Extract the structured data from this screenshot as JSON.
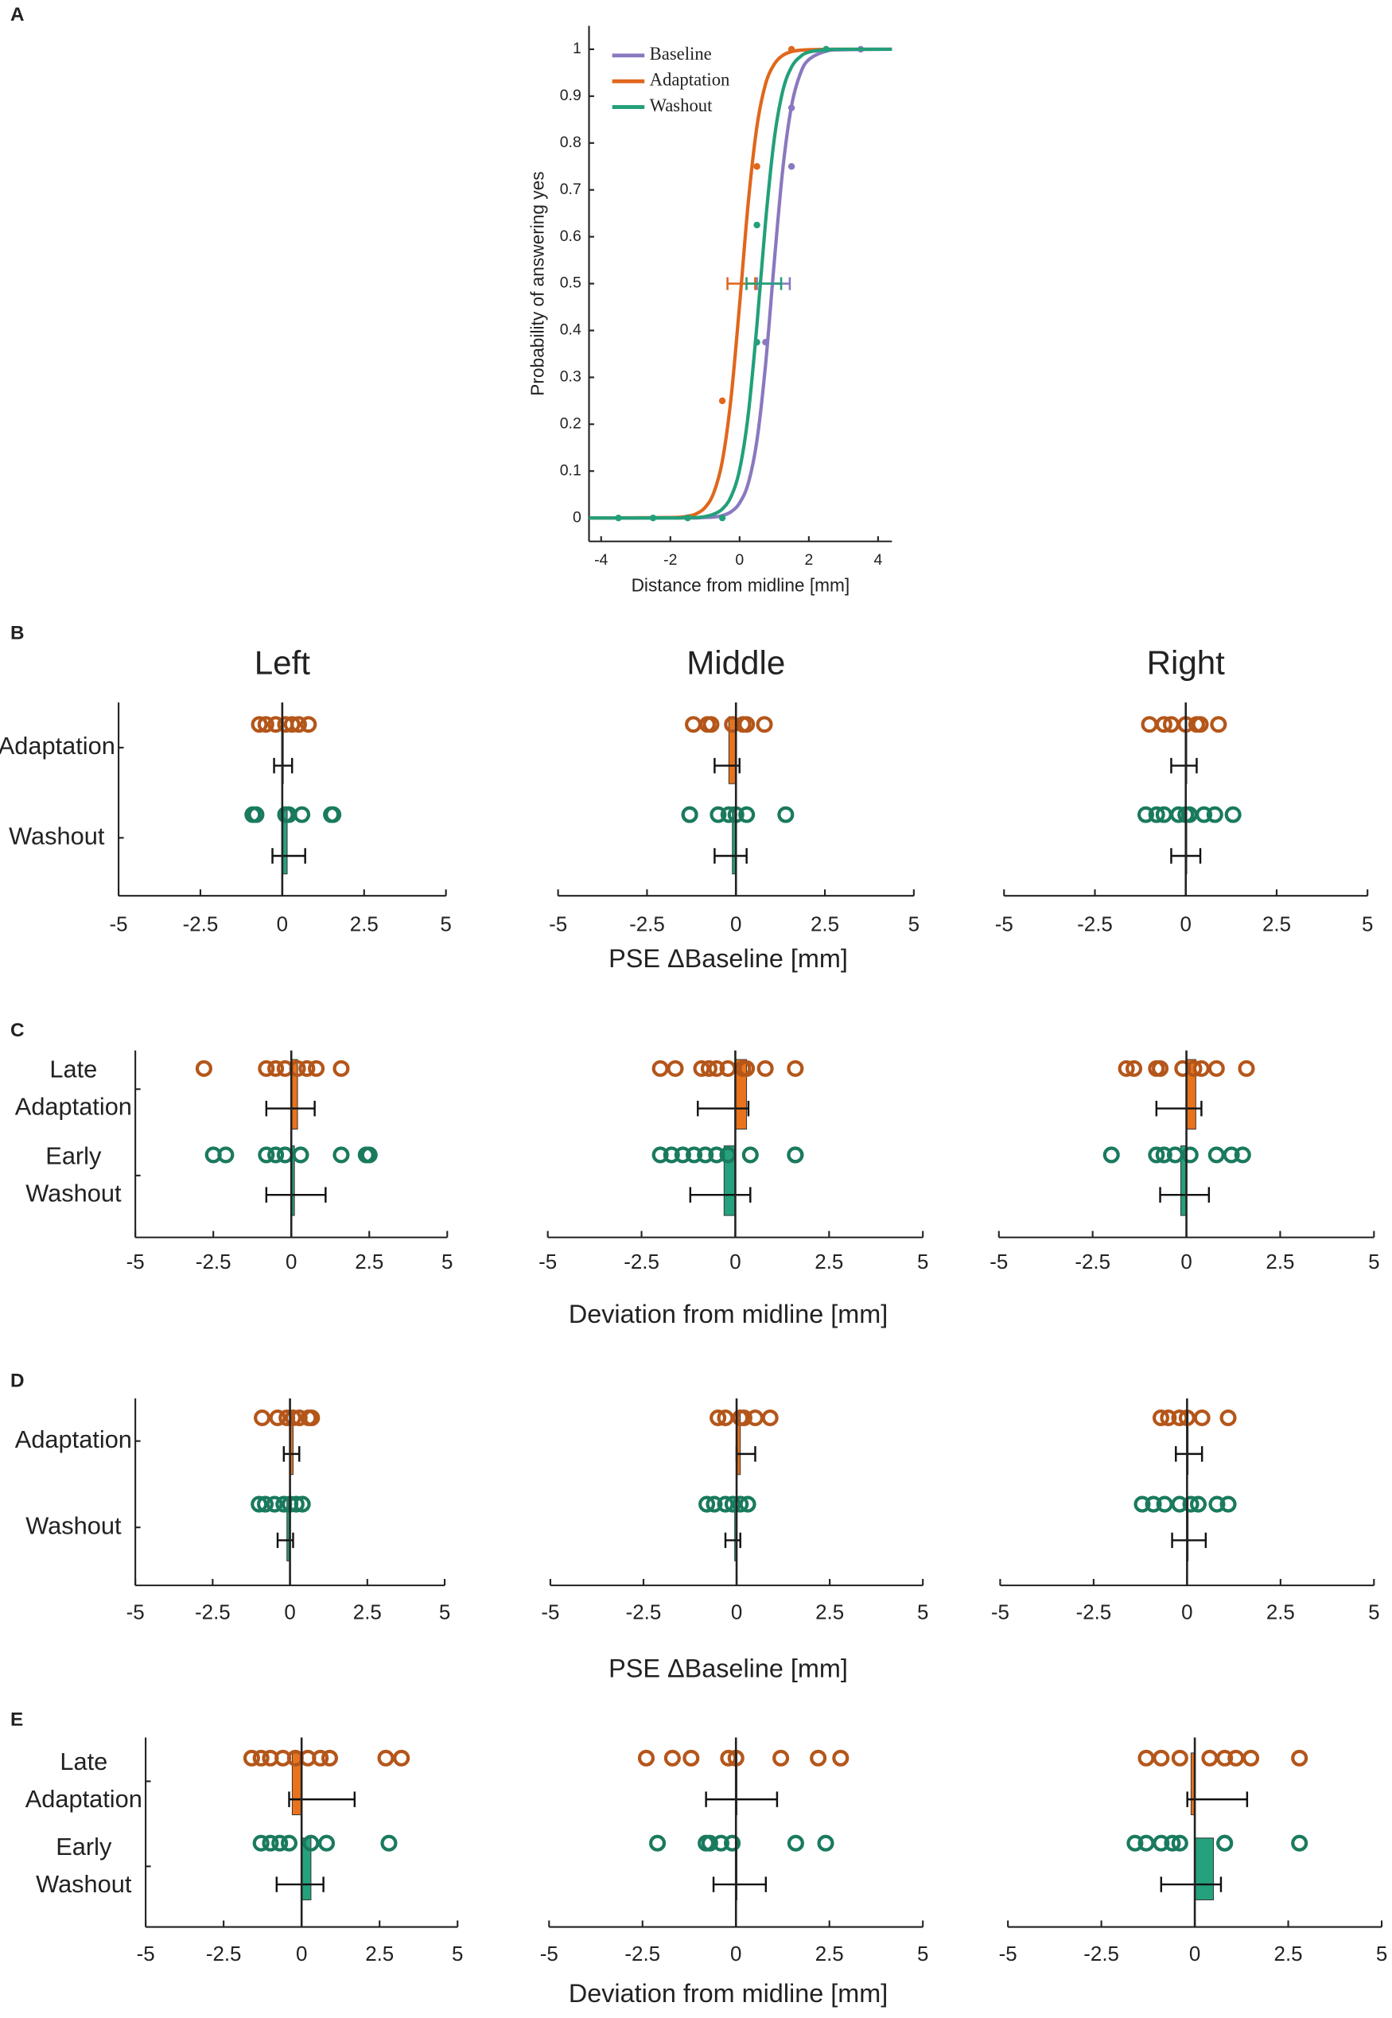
{
  "chart_data": [
    {
      "type": "line",
      "panel": "A",
      "xlabel": "Distance from midline [mm]",
      "ylabel": "Probability of answering yes",
      "xlim": [
        -4.35,
        4.4
      ],
      "ylim": [
        -0.05,
        1.05
      ],
      "xticks": [
        -4,
        -2,
        0,
        2,
        4
      ],
      "yticks": [
        0,
        0.1,
        0.2,
        0.3,
        0.4,
        0.5,
        0.6,
        0.7,
        0.8,
        0.9,
        1
      ],
      "x": [
        -4.35,
        -2,
        -1.5,
        -1.25,
        -1,
        -0.75,
        -0.5,
        -0.25,
        0,
        0.25,
        0.5,
        0.75,
        1,
        1.25,
        1.5,
        1.75,
        2,
        2.5,
        3,
        4.4
      ],
      "series": [
        {
          "name": "Baseline",
          "color": "#8a78c0",
          "values": [
            0,
            0,
            0,
            0,
            0.001,
            0.002,
            0.005,
            0.013,
            0.032,
            0.074,
            0.165,
            0.327,
            0.545,
            0.746,
            0.879,
            0.947,
            0.978,
            0.996,
            0.999,
            1
          ],
          "points_x": [
            0.75,
            1.5,
            1.5,
            2.5,
            3.5
          ],
          "points_y": [
            0.375,
            0.75,
            0.875,
            1,
            1
          ],
          "ci": [
            0.5,
            1.45
          ]
        },
        {
          "name": "Adaptation",
          "color": "#e0671c",
          "values": [
            0,
            0.001,
            0.004,
            0.009,
            0.022,
            0.053,
            0.121,
            0.254,
            0.455,
            0.673,
            0.835,
            0.926,
            0.968,
            0.987,
            0.995,
            0.998,
            0.999,
            1,
            1,
            1
          ],
          "points_x": [
            -0.5,
            0.5,
            1.5
          ],
          "points_y": [
            0.25,
            0.75,
            1
          ],
          "ci": [
            -0.35,
            0.45
          ]
        },
        {
          "name": "Washout",
          "color": "#22a07a",
          "values": [
            0,
            0,
            0.001,
            0.001,
            0.003,
            0.008,
            0.019,
            0.045,
            0.103,
            0.221,
            0.411,
            0.632,
            0.808,
            0.912,
            0.962,
            0.984,
            0.994,
            0.999,
            1,
            1
          ],
          "points_x": [
            -3.5,
            -2.5,
            -1.5,
            -0.5,
            0.5,
            0.5,
            2.5
          ],
          "points_y": [
            0,
            0,
            0,
            0,
            0.375,
            0.625,
            1
          ],
          "ci": [
            0.2,
            1.2
          ]
        }
      ]
    },
    {
      "type": "strip",
      "panel": "B",
      "column_titles": [
        "Left",
        "Middle",
        "Right"
      ],
      "categories": [
        [
          "Adaptation"
        ],
        [
          "Washout"
        ]
      ],
      "colors": [
        "#e8731c",
        "#26a17d"
      ],
      "point_colors": [
        "#b4561a",
        "#1a7a5e"
      ],
      "xlabel": "PSE ΔBaseline [mm]",
      "xlim": [
        -5,
        5
      ],
      "xticks": [
        -5,
        -2.5,
        0,
        2.5,
        5
      ],
      "subplots": [
        {
          "groups": [
            {
              "points": [
                -0.7,
                -0.5,
                -0.2,
                0.1,
                0.3,
                0.5,
                0.8
              ],
              "mean": 0.02,
              "ci": [
                -0.25,
                0.3
              ]
            },
            {
              "points": [
                -0.9,
                -0.8,
                0.1,
                0.2,
                0.6,
                1.5,
                1.55
              ],
              "mean": 0.15,
              "ci": [
                -0.3,
                0.7
              ]
            }
          ]
        },
        {
          "groups": [
            {
              "points": [
                -1.2,
                -0.8,
                -0.7,
                -0.1,
                0.2,
                0.3,
                0.8
              ],
              "mean": -0.2,
              "ci": [
                -0.6,
                0.1
              ]
            },
            {
              "points": [
                -1.3,
                -1.3,
                -0.5,
                -0.2,
                0,
                0.3,
                1.4
              ],
              "mean": -0.1,
              "ci": [
                -0.6,
                0.3
              ]
            }
          ]
        },
        {
          "groups": [
            {
              "points": [
                -1,
                -0.6,
                -0.4,
                0,
                0.3,
                0.4,
                0.9
              ],
              "mean": 0,
              "ci": [
                -0.4,
                0.3
              ]
            },
            {
              "points": [
                -1.1,
                -0.8,
                -0.6,
                -0.2,
                0,
                0.1,
                0.5,
                0.8,
                1.3
              ],
              "mean": 0,
              "ci": [
                -0.4,
                0.4
              ]
            }
          ]
        }
      ]
    },
    {
      "type": "strip",
      "panel": "C",
      "categories": [
        [
          "Late",
          "Adaptation"
        ],
        [
          "Early",
          "Washout"
        ]
      ],
      "colors": [
        "#e8731c",
        "#26a17d"
      ],
      "point_colors": [
        "#b4561a",
        "#1a7a5e"
      ],
      "xlabel": "Deviation from midline [mm]",
      "xlim": [
        -5,
        5
      ],
      "xticks": [
        -5,
        -2.5,
        0,
        2.5,
        5
      ],
      "subplots": [
        {
          "groups": [
            {
              "points": [
                -2.8,
                -0.8,
                -0.5,
                -0.2,
                0.2,
                0.5,
                0.8,
                1.6
              ],
              "mean": 0.2,
              "ci": [
                -0.8,
                0.75
              ]
            },
            {
              "points": [
                -2.5,
                -2.1,
                -0.8,
                -0.5,
                -0.2,
                0.3,
                1.6,
                2.4,
                2.5
              ],
              "mean": 0.1,
              "ci": [
                -0.8,
                1.1
              ]
            }
          ]
        },
        {
          "groups": [
            {
              "points": [
                -2,
                -1.6,
                -0.9,
                -0.7,
                -0.5,
                -0.2,
                0.2,
                0.3,
                0.8,
                1.6
              ],
              "mean": 0.3,
              "ci": [
                -1,
                0.35
              ]
            },
            {
              "points": [
                -2,
                -1.7,
                -1.4,
                -1.1,
                -0.8,
                -0.5,
                -0.2,
                0.4,
                1.6,
                1.6
              ],
              "mean": -0.3,
              "ci": [
                -1.2,
                0.4
              ]
            }
          ]
        },
        {
          "groups": [
            {
              "points": [
                -1.6,
                -1.4,
                -0.8,
                -0.7,
                -0.1,
                0.2,
                0.4,
                0.8,
                1.6
              ],
              "mean": 0.25,
              "ci": [
                -0.8,
                0.4
              ]
            },
            {
              "points": [
                -2,
                -0.8,
                -0.6,
                -0.3,
                0.1,
                0.8,
                1.2,
                1.5
              ],
              "mean": -0.15,
              "ci": [
                -0.7,
                0.6
              ]
            }
          ]
        }
      ]
    },
    {
      "type": "strip",
      "panel": "D",
      "categories": [
        [
          "Adaptation"
        ],
        [
          "Washout"
        ]
      ],
      "colors": [
        "#e8731c",
        "#26a17d"
      ],
      "point_colors": [
        "#b4561a",
        "#1a7a5e"
      ],
      "xlabel": "PSE ΔBaseline [mm]",
      "xlim": [
        -5,
        5
      ],
      "xticks": [
        -5,
        -2.5,
        0,
        2.5,
        5
      ],
      "subplots": [
        {
          "groups": [
            {
              "points": [
                -0.9,
                -0.4,
                -0.1,
                0.1,
                0.3,
                0.6,
                0.7
              ],
              "mean": 0.1,
              "ci": [
                -0.2,
                0.3
              ]
            },
            {
              "points": [
                -1,
                -0.8,
                -0.5,
                -0.2,
                0,
                0.2,
                0.4
              ],
              "mean": -0.1,
              "ci": [
                -0.4,
                0.1
              ]
            }
          ]
        },
        {
          "groups": [
            {
              "points": [
                -0.5,
                -0.3,
                0.1,
                0.2,
                0.5,
                0.9
              ],
              "mean": 0.1,
              "ci": [
                0,
                0.5
              ]
            },
            {
              "points": [
                -0.8,
                -0.6,
                -0.3,
                -0.1,
                0.1,
                0.3
              ],
              "mean": -0.05,
              "ci": [
                -0.3,
                0.1
              ]
            }
          ]
        },
        {
          "groups": [
            {
              "points": [
                -0.7,
                -0.5,
                -0.2,
                0,
                0.4,
                1.1
              ],
              "mean": 0,
              "ci": [
                -0.3,
                0.4
              ]
            },
            {
              "points": [
                -1.2,
                -0.9,
                -0.6,
                -0.2,
                0.1,
                0.3,
                0.8,
                1.1
              ],
              "mean": 0,
              "ci": [
                -0.4,
                0.5
              ]
            }
          ]
        }
      ]
    },
    {
      "type": "strip",
      "panel": "E",
      "categories": [
        [
          "Late",
          "Adaptation"
        ],
        [
          "Early",
          "Washout"
        ]
      ],
      "colors": [
        "#e8731c",
        "#26a17d"
      ],
      "point_colors": [
        "#b4561a",
        "#1a7a5e"
      ],
      "xlabel": "Deviation from midline [mm]",
      "xlim": [
        -5,
        5
      ],
      "xticks": [
        -5,
        -2.5,
        0,
        2.5,
        5
      ],
      "subplots": [
        {
          "groups": [
            {
              "points": [
                -1.6,
                -1.3,
                -1,
                -0.6,
                -0.2,
                0.2,
                0.6,
                0.9,
                2.7,
                3.2
              ],
              "mean": -0.3,
              "ci": [
                -0.4,
                1.7
              ]
            },
            {
              "points": [
                -1.3,
                -1,
                -0.7,
                -0.4,
                0.3,
                0.8,
                2.8
              ],
              "mean": 0.3,
              "ci": [
                -0.8,
                0.7
              ]
            }
          ]
        },
        {
          "groups": [
            {
              "points": [
                -2.4,
                -1.7,
                -1.2,
                -0.2,
                0,
                1.2,
                2.2,
                2.8
              ],
              "mean": 0,
              "ci": [
                -0.8,
                1.1
              ]
            },
            {
              "points": [
                -2.1,
                -0.8,
                -0.7,
                -0.4,
                -0.1,
                1.6,
                2.4
              ],
              "mean": 0,
              "ci": [
                -0.6,
                0.8
              ]
            }
          ]
        },
        {
          "groups": [
            {
              "points": [
                -1.3,
                -0.9,
                -0.4,
                0.4,
                0.8,
                1.1,
                1.5,
                2.8
              ],
              "mean": -0.1,
              "ci": [
                -0.2,
                1.4
              ]
            },
            {
              "points": [
                -1.6,
                -1.3,
                -0.9,
                -0.6,
                -0.4,
                0.8,
                0.8,
                2.8
              ],
              "mean": 0.5,
              "ci": [
                -0.9,
                0.7
              ]
            }
          ]
        }
      ]
    }
  ]
}
